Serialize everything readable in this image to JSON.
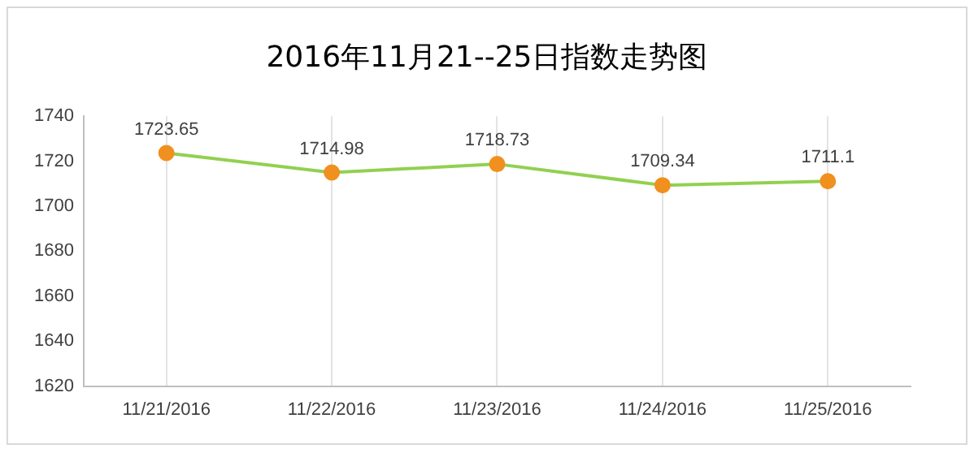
{
  "chart_data": {
    "type": "line",
    "title": "2016年11月21--25日指数走势图",
    "categories": [
      "11/21/2016",
      "11/22/2016",
      "11/23/2016",
      "11/24/2016",
      "11/25/2016"
    ],
    "series": [
      {
        "color": "#92d050",
        "colors": [
          "#f0901e",
          "#f0901e",
          "#f0901e",
          "#f0901e",
          "#f0901e"
        ],
        "values": [
          1723.65,
          1714.98,
          1718.73,
          1709.34,
          1711.1
        ]
      }
    ],
    "ylim": [
      1620,
      1740
    ],
    "yticks": [
      1620,
      1640,
      1660,
      1680,
      1700,
      1720,
      1740
    ],
    "grid": "x",
    "legend": false,
    "marker": "circle",
    "line_style": "solid",
    "data_labels": true
  }
}
